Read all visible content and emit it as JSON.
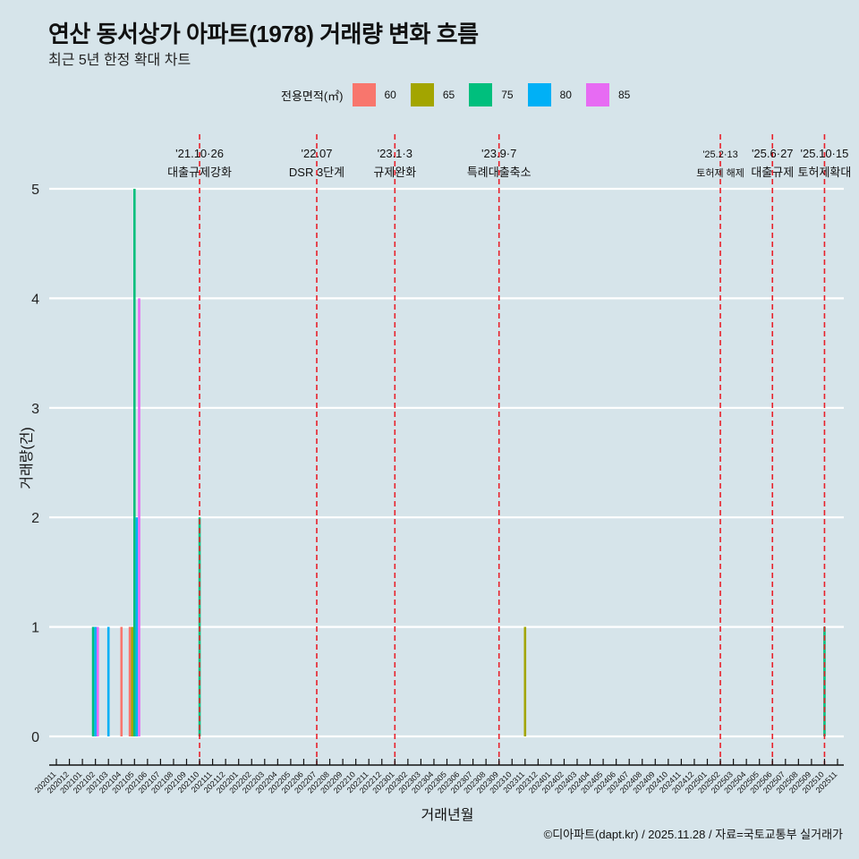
{
  "header": {
    "title": "연산 동서상가 아파트(1978) 거래량 변화 흐름",
    "subtitle": "최근 5년 한정 확대 차트"
  },
  "legend": {
    "title": "전용면적(㎡)",
    "items": [
      {
        "label": "60",
        "color": "#F8766D"
      },
      {
        "label": "65",
        "color": "#A3A500"
      },
      {
        "label": "75",
        "color": "#00BF7D"
      },
      {
        "label": "80",
        "color": "#00B0F6"
      },
      {
        "label": "85",
        "color": "#E76BF3"
      }
    ]
  },
  "footer": {
    "credit": "©디아파트(dapt.kr) / 2025.11.28 / 자료=국토교통부 실거래가"
  },
  "axes": {
    "xlabel": "거래년월",
    "ylabel": "거래량(건)"
  },
  "chart_data": {
    "type": "bar",
    "title": "연산 동서상가 아파트(1978) 거래량 변화 흐름",
    "subtitle": "최근 5년 한정 확대 차트",
    "xlabel": "거래년월",
    "ylabel": "거래량(건)",
    "ylim": [
      0,
      5
    ],
    "yticks": [
      0,
      1,
      2,
      3,
      4,
      5
    ],
    "grid": true,
    "legend_position": "top",
    "categories": [
      "202011",
      "202012",
      "202101",
      "202102",
      "202103",
      "202104",
      "202105",
      "202106",
      "202107",
      "202108",
      "202109",
      "202110",
      "202111",
      "202112",
      "202201",
      "202202",
      "202203",
      "202204",
      "202205",
      "202206",
      "202207",
      "202208",
      "202209",
      "202210",
      "202211",
      "202212",
      "202301",
      "202302",
      "202303",
      "202304",
      "202305",
      "202306",
      "202307",
      "202308",
      "202309",
      "202310",
      "202311",
      "202312",
      "202401",
      "202402",
      "202403",
      "202404",
      "202405",
      "202406",
      "202407",
      "202408",
      "202409",
      "202410",
      "202411",
      "202412",
      "202501",
      "202502",
      "202503",
      "202504",
      "202505",
      "202506",
      "202507",
      "202508",
      "202509",
      "202510",
      "202511"
    ],
    "series": [
      {
        "name": "60",
        "color": "#F8766D",
        "points": [
          {
            "x": "202104",
            "y": 1
          },
          {
            "x": "202105",
            "y": 1
          }
        ]
      },
      {
        "name": "65",
        "color": "#A3A500",
        "points": [
          {
            "x": "202105",
            "y": 1
          },
          {
            "x": "202311",
            "y": 1
          }
        ]
      },
      {
        "name": "75",
        "color": "#00BF7D",
        "points": [
          {
            "x": "202102",
            "y": 1
          },
          {
            "x": "202105",
            "y": 5
          },
          {
            "x": "202110",
            "y": 2
          },
          {
            "x": "202510",
            "y": 1
          }
        ]
      },
      {
        "name": "80",
        "color": "#00B0F6",
        "points": [
          {
            "x": "202102",
            "y": 1
          },
          {
            "x": "202103",
            "y": 1
          },
          {
            "x": "202105",
            "y": 2
          }
        ]
      },
      {
        "name": "85",
        "color": "#E76BF3",
        "points": [
          {
            "x": "202102",
            "y": 1
          },
          {
            "x": "202105",
            "y": 4
          }
        ]
      }
    ],
    "annotations": [
      {
        "x": "202110",
        "date": "'21.10·26",
        "label": "대출규제강화"
      },
      {
        "x": "202207",
        "date": "'22.07",
        "label": "DSR 3단계"
      },
      {
        "x": "202301",
        "date": "'23.1·3",
        "label": "규제완화"
      },
      {
        "x": "202309",
        "date": "'23.9·7",
        "label": "특례대출축소"
      },
      {
        "x": "202502",
        "date": "'25.2·13",
        "label": "토허제 해제"
      },
      {
        "x": "202506",
        "date": "'25.6·27",
        "label": "대출규제"
      },
      {
        "x": "202510",
        "date": "'25.10·15",
        "label": "토허제확대"
      }
    ]
  }
}
